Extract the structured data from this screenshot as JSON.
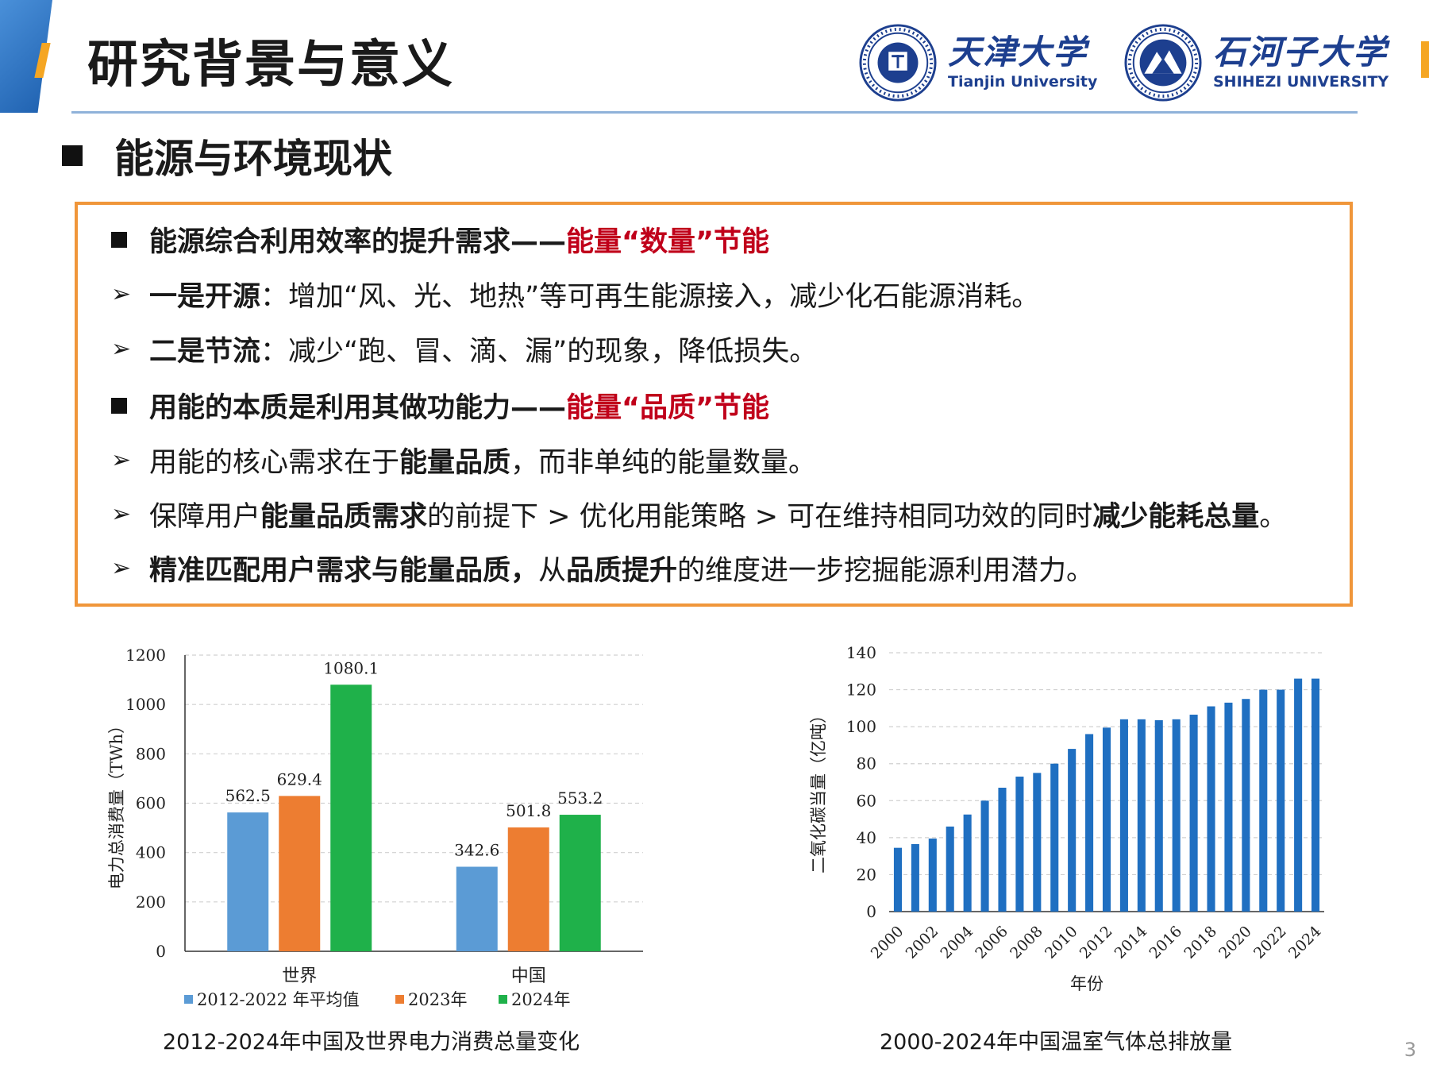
{
  "slide": {
    "title": "研究背景与意义",
    "section_heading": "能源与环境现状",
    "page_number": "3"
  },
  "logos": {
    "tju": {
      "cn": "天津大学",
      "en": "Tianjin University",
      "seal_color": "#1d3f8f"
    },
    "shz": {
      "cn": "石河子大学",
      "en": "SHIHEZI UNIVERSITY",
      "seal_color": "#1d3f8f"
    }
  },
  "box": {
    "lines": [
      {
        "bullet": "square",
        "segments": [
          {
            "text": "能源综合利用效率的提升需求——",
            "style": "bold"
          },
          {
            "text": "能量“数量”节能",
            "style": "red"
          }
        ]
      },
      {
        "bullet": "arrow",
        "segments": [
          {
            "text": "一是开源",
            "style": "bold"
          },
          {
            "text": "：增加“风、光、地热”等可再生能源接入，减少化石能源消耗。",
            "style": "normal"
          }
        ]
      },
      {
        "bullet": "arrow",
        "segments": [
          {
            "text": "二是节流",
            "style": "bold"
          },
          {
            "text": "：减少“跑、冒、滴、漏”的现象，降低损失。",
            "style": "normal"
          }
        ]
      },
      {
        "bullet": "square",
        "segments": [
          {
            "text": "用能的本质是利用其做功能力——",
            "style": "bold"
          },
          {
            "text": "能量“品质”节能",
            "style": "red"
          }
        ]
      },
      {
        "bullet": "arrow",
        "segments": [
          {
            "text": "用能的核心需求在于",
            "style": "normal"
          },
          {
            "text": "能量品质",
            "style": "bold"
          },
          {
            "text": "，而非单纯的能量数量。",
            "style": "normal"
          }
        ]
      },
      {
        "bullet": "arrow",
        "segments": [
          {
            "text": "保障用户",
            "style": "normal"
          },
          {
            "text": "能量品质需求",
            "style": "bold"
          },
          {
            "text": "的前提下 > 优化用能策略 > 可在维持相同功效的同时",
            "style": "normal"
          },
          {
            "text": "减少能耗总量",
            "style": "bold"
          },
          {
            "text": "。",
            "style": "normal"
          }
        ]
      },
      {
        "bullet": "arrow",
        "segments": [
          {
            "text": "精准匹配用户需求与能量品质，",
            "style": "bold"
          },
          {
            "text": "从",
            "style": "normal"
          },
          {
            "text": "品质提升",
            "style": "bold"
          },
          {
            "text": "的维度进一步挖掘能源利用潜力。",
            "style": "normal"
          }
        ]
      }
    ],
    "arrow_glyph": "➢",
    "border_color": "#f0963a",
    "highlight_color": "#c0001a"
  },
  "chart_data": [
    {
      "type": "bar",
      "categories": [
        "世界",
        "中国"
      ],
      "series": [
        {
          "name": "2012-2022 年平均值",
          "values": [
            562.5,
            342.6
          ],
          "color": "#5b9bd5"
        },
        {
          "name": "2023年",
          "values": [
            629.4,
            501.8
          ],
          "color": "#ed7d31"
        },
        {
          "name": "2024年",
          "values": [
            1080.1,
            553.2
          ],
          "color": "#1fb14a"
        }
      ],
      "ylabel": "电力总消费量（TWh）",
      "ylim": [
        0,
        1200
      ],
      "yticks": [
        0,
        200,
        400,
        600,
        800,
        1000,
        1200
      ],
      "grid": true,
      "legend_position": "bottom",
      "caption": "2012-2024年中国及世界电力消费总量变化"
    },
    {
      "type": "bar",
      "x": [
        2000,
        2001,
        2002,
        2003,
        2004,
        2005,
        2006,
        2007,
        2008,
        2009,
        2010,
        2011,
        2012,
        2013,
        2014,
        2015,
        2016,
        2017,
        2018,
        2019,
        2020,
        2021,
        2022,
        2023,
        2024
      ],
      "values": [
        34.5,
        36.5,
        39.5,
        46,
        52.5,
        60,
        67,
        73,
        75,
        80,
        88,
        96,
        99.5,
        104,
        104,
        103.5,
        104,
        106.5,
        111,
        113,
        115,
        120,
        120,
        126,
        126
      ],
      "xticks": [
        "2000",
        "2002",
        "2004",
        "2006",
        "2008",
        "2010",
        "2012",
        "2014",
        "2016",
        "2018",
        "2020",
        "2022",
        "2024"
      ],
      "ylabel": "二氧化碳当量（亿吨）",
      "xlabel": "年份",
      "ylim": [
        0,
        140
      ],
      "yticks": [
        0,
        20,
        40,
        60,
        80,
        100,
        120,
        140
      ],
      "grid": true,
      "color": "#1f6fc1",
      "caption": "2000-2024年中国温室气体总排放量"
    }
  ]
}
